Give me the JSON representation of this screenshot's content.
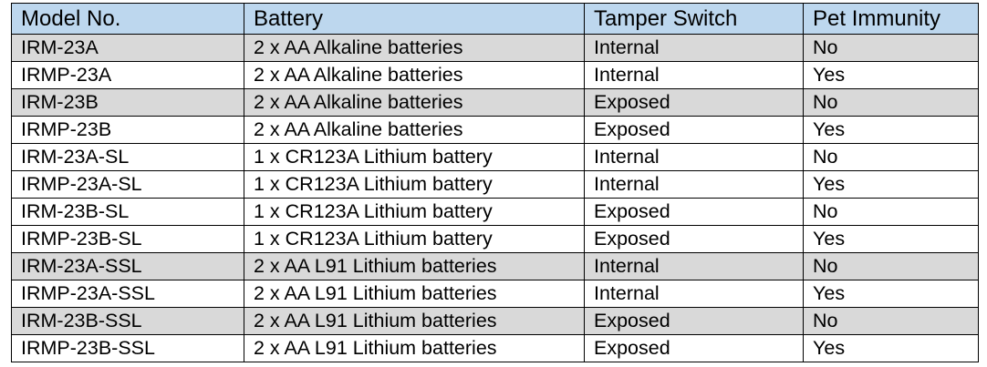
{
  "table": {
    "headers": [
      "Model No.",
      "Battery",
      "Tamper Switch",
      "Pet Immunity"
    ],
    "shaded_row_color": "#d9d9d9",
    "header_color": "#bdd7ee",
    "rows": [
      [
        "IRM-23A",
        "2 x AA Alkaline batteries",
        "Internal",
        "No"
      ],
      [
        "IRMP-23A",
        "2 x AA Alkaline batteries",
        "Internal",
        "Yes"
      ],
      [
        "IRM-23B",
        "2 x AA Alkaline batteries",
        "Exposed",
        "No"
      ],
      [
        "IRMP-23B",
        "2 x AA Alkaline batteries",
        "Exposed",
        "Yes"
      ],
      [
        "IRM-23A-SL",
        "1 x CR123A Lithium battery",
        "Internal",
        "No"
      ],
      [
        "IRMP-23A-SL",
        "1 x CR123A Lithium battery",
        "Internal",
        "Yes"
      ],
      [
        "IRM-23B-SL",
        "1 x CR123A Lithium battery",
        "Exposed",
        "No"
      ],
      [
        "IRMP-23B-SL",
        "1 x CR123A Lithium battery",
        "Exposed",
        "Yes"
      ],
      [
        "IRM-23A-SSL",
        "2 x AA L91 Lithium batteries",
        "Internal",
        "No"
      ],
      [
        "IRMP-23A-SSL",
        "2 x AA L91 Lithium batteries",
        "Internal",
        "Yes"
      ],
      [
        "IRM-23B-SSL",
        "2 x AA L91 Lithium batteries",
        "Exposed",
        "No"
      ],
      [
        "IRMP-23B-SSL",
        "2 x AA L91 Lithium batteries",
        "Exposed",
        "Yes"
      ]
    ],
    "shaded_rows": [
      true,
      false,
      true,
      false,
      false,
      false,
      false,
      false,
      true,
      false,
      true,
      false
    ]
  }
}
